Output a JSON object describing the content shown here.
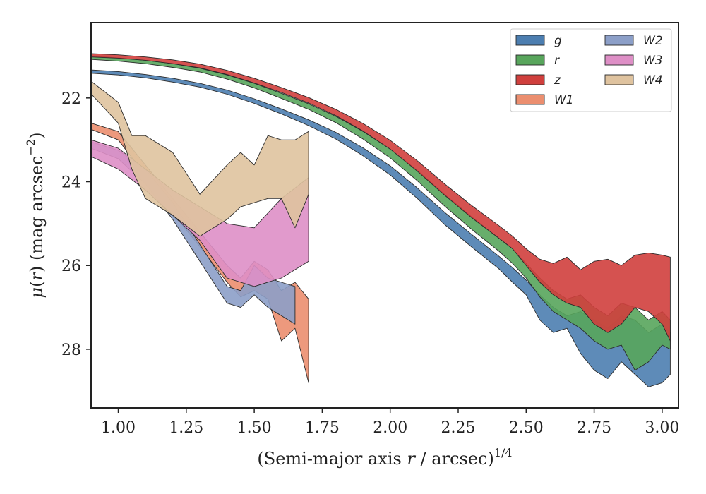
{
  "chart_data": {
    "type": "area",
    "xlabel": "(Semi-major axis r / arcsec)^{1/4}",
    "ylabel": "μ(r) (mag arcsec^{−2})",
    "xlim": [
      0.9,
      3.06
    ],
    "ylim": [
      29.4,
      20.2
    ],
    "y_inverted": true,
    "grid": false,
    "legend_position": "top-right",
    "x_ticks": [
      "1.00",
      "1.25",
      "1.50",
      "1.75",
      "2.00",
      "2.25",
      "2.50",
      "2.75",
      "3.00"
    ],
    "y_ticks": [
      "22",
      "24",
      "26",
      "28"
    ],
    "series": [
      {
        "name": "g",
        "color": "#4c7eb0",
        "x": [
          0.9,
          1.0,
          1.1,
          1.2,
          1.3,
          1.4,
          1.5,
          1.6,
          1.7,
          1.8,
          1.9,
          2.0,
          2.1,
          2.2,
          2.3,
          2.4,
          2.45,
          2.5,
          2.55,
          2.6,
          2.65,
          2.7,
          2.75,
          2.8,
          2.85,
          2.9,
          2.95,
          3.0,
          3.03
        ],
        "lower": [
          21.33,
          21.37,
          21.44,
          21.53,
          21.65,
          21.81,
          22.02,
          22.26,
          22.52,
          22.82,
          23.19,
          23.62,
          24.15,
          24.73,
          25.26,
          25.78,
          26.05,
          26.35,
          26.7,
          27.0,
          27.2,
          27.1,
          27.3,
          27.5,
          27.2,
          27.3,
          27.6,
          27.4,
          27.6
        ],
        "upper": [
          21.41,
          21.45,
          21.52,
          21.62,
          21.74,
          21.91,
          22.13,
          22.38,
          22.66,
          22.98,
          23.38,
          23.84,
          24.4,
          25.02,
          25.56,
          26.08,
          26.4,
          26.7,
          27.3,
          27.6,
          27.5,
          28.1,
          28.5,
          28.7,
          28.3,
          28.6,
          28.9,
          28.8,
          28.6
        ]
      },
      {
        "name": "r",
        "color": "#58a55c",
        "x": [
          0.9,
          1.0,
          1.1,
          1.2,
          1.3,
          1.4,
          1.5,
          1.6,
          1.7,
          1.8,
          1.9,
          2.0,
          2.1,
          2.2,
          2.3,
          2.4,
          2.45,
          2.5,
          2.55,
          2.6,
          2.65,
          2.7,
          2.75,
          2.8,
          2.85,
          2.9,
          2.95,
          3.0,
          3.03
        ],
        "lower": [
          21.0,
          21.04,
          21.1,
          21.18,
          21.29,
          21.45,
          21.65,
          21.89,
          22.14,
          22.44,
          22.8,
          23.22,
          23.73,
          24.3,
          24.84,
          25.35,
          25.6,
          25.95,
          26.3,
          26.6,
          26.8,
          26.7,
          27.0,
          27.2,
          26.9,
          27.0,
          27.3,
          27.1,
          27.3
        ],
        "upper": [
          21.08,
          21.12,
          21.18,
          21.27,
          21.38,
          21.55,
          21.76,
          22.01,
          22.27,
          22.59,
          22.98,
          23.43,
          23.98,
          24.58,
          25.14,
          25.66,
          25.95,
          26.3,
          26.75,
          27.1,
          27.3,
          27.5,
          27.8,
          28.0,
          27.9,
          28.5,
          28.3,
          27.9,
          28.0
        ]
      },
      {
        "name": "z",
        "color": "#d03f3d",
        "x": [
          0.9,
          1.0,
          1.1,
          1.2,
          1.3,
          1.4,
          1.5,
          1.6,
          1.7,
          1.8,
          1.9,
          2.0,
          2.1,
          2.2,
          2.3,
          2.4,
          2.45,
          2.5,
          2.55,
          2.6,
          2.65,
          2.7,
          2.75,
          2.8,
          2.85,
          2.9,
          2.95,
          3.0,
          3.03
        ],
        "lower": [
          20.94,
          20.97,
          21.02,
          21.09,
          21.19,
          21.34,
          21.53,
          21.75,
          21.99,
          22.27,
          22.61,
          23.01,
          23.5,
          24.05,
          24.57,
          25.05,
          25.3,
          25.6,
          25.85,
          25.95,
          25.8,
          26.1,
          25.9,
          25.85,
          26.0,
          25.75,
          25.7,
          25.75,
          25.8
        ],
        "upper": [
          21.02,
          21.05,
          21.1,
          21.18,
          21.28,
          21.44,
          21.64,
          21.87,
          22.12,
          22.42,
          22.79,
          23.22,
          23.75,
          24.32,
          24.86,
          25.35,
          25.6,
          26.0,
          26.4,
          26.7,
          26.9,
          27.0,
          27.4,
          27.6,
          27.4,
          27.0,
          27.1,
          27.4,
          27.8
        ]
      },
      {
        "name": "W1",
        "color": "#eb8e6f",
        "x": [
          0.9,
          1.0,
          1.1,
          1.2,
          1.3,
          1.4,
          1.45,
          1.5,
          1.55,
          1.6,
          1.65,
          1.7
        ],
        "lower": [
          22.6,
          22.8,
          23.6,
          24.4,
          25.2,
          26.0,
          26.3,
          25.9,
          26.1,
          26.6,
          26.4,
          26.8
        ],
        "upper": [
          22.75,
          23.0,
          23.85,
          24.75,
          25.55,
          26.4,
          26.75,
          26.6,
          26.8,
          27.8,
          27.5,
          28.8
        ]
      },
      {
        "name": "W2",
        "color": "#8c9fc8",
        "x": [
          0.9,
          1.0,
          1.1,
          1.2,
          1.3,
          1.4,
          1.45,
          1.5,
          1.55,
          1.6,
          1.65
        ],
        "lower": [
          23.05,
          23.25,
          23.7,
          24.5,
          25.5,
          26.5,
          26.6,
          26.0,
          26.3,
          26.4,
          26.5
        ],
        "upper": [
          23.2,
          23.45,
          24.05,
          24.9,
          25.9,
          26.9,
          27.0,
          26.7,
          27.0,
          27.2,
          27.4
        ]
      },
      {
        "name": "W3",
        "color": "#de8fc6",
        "x": [
          0.9,
          1.0,
          1.1,
          1.2,
          1.3,
          1.4,
          1.5,
          1.6,
          1.7
        ],
        "lower": [
          23.0,
          23.2,
          23.7,
          24.2,
          24.6,
          25.0,
          25.1,
          24.4,
          23.9
        ],
        "upper": [
          23.4,
          23.7,
          24.2,
          24.8,
          25.4,
          26.3,
          26.5,
          26.3,
          25.9
        ]
      },
      {
        "name": "W4",
        "color": "#dfc39f",
        "x": [
          0.9,
          1.0,
          1.05,
          1.1,
          1.2,
          1.3,
          1.4,
          1.45,
          1.5,
          1.55,
          1.6,
          1.65,
          1.7
        ],
        "lower": [
          21.6,
          22.1,
          22.9,
          22.9,
          23.3,
          24.3,
          23.6,
          23.3,
          23.6,
          22.9,
          23.0,
          23.0,
          22.8
        ],
        "upper": [
          21.9,
          22.6,
          23.7,
          24.4,
          24.8,
          25.3,
          24.9,
          24.6,
          24.5,
          24.4,
          24.4,
          25.1,
          24.3
        ]
      }
    ]
  }
}
